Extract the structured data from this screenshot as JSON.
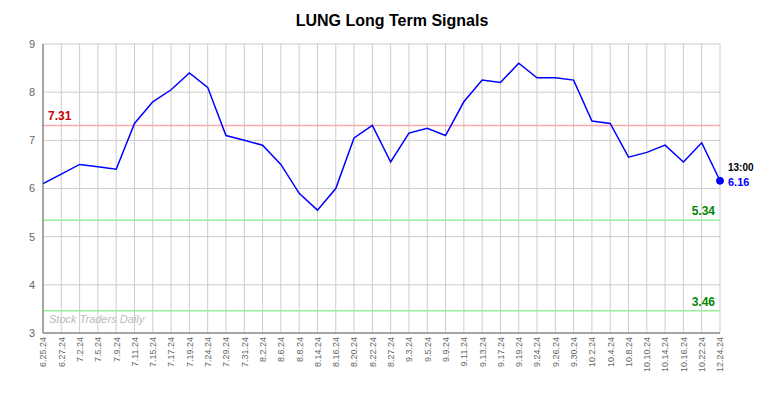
{
  "chart_data": {
    "type": "line",
    "title": "LUNG Long Term Signals",
    "categories": [
      "6.25.24",
      "6.27.24",
      "7.2.24",
      "7.5.24",
      "7.9.24",
      "7.11.24",
      "7.15.24",
      "7.17.24",
      "7.19.24",
      "7.24.24",
      "7.29.24",
      "7.31.24",
      "8.2.24",
      "8.6.24",
      "8.8.24",
      "8.14.24",
      "8.16.24",
      "8.20.24",
      "8.22.24",
      "8.27.24",
      "9.3.24",
      "9.5.24",
      "9.9.24",
      "9.11.24",
      "9.13.24",
      "9.17.24",
      "9.19.24",
      "9.24.24",
      "9.26.24",
      "9.30.24",
      "10.2.24",
      "10.4.24",
      "10.8.24",
      "10.10.24",
      "10.14.24",
      "10.16.24",
      "10.22.24",
      "12.24.24"
    ],
    "values": [
      6.1,
      6.3,
      6.5,
      6.45,
      6.4,
      7.35,
      7.8,
      8.05,
      8.4,
      8.1,
      7.1,
      7.0,
      6.9,
      6.5,
      5.9,
      5.55,
      6.0,
      7.05,
      7.31,
      6.55,
      7.15,
      7.25,
      7.1,
      7.8,
      8.25,
      8.2,
      8.6,
      8.3,
      8.3,
      8.25,
      7.4,
      7.35,
      6.65,
      6.75,
      6.9,
      6.55,
      6.95,
      6.16
    ],
    "color": "#0000ff",
    "ylim": [
      3,
      9
    ],
    "yticks": [
      3,
      4,
      5,
      6,
      7,
      8,
      9
    ],
    "grid": true,
    "hlines": [
      {
        "value": 7.31,
        "color": "#ffaaaa",
        "label": "7.31",
        "label_color": "#cc0000"
      },
      {
        "value": 5.34,
        "color": "#99ee99",
        "label": "5.34",
        "label_color": "#008800"
      },
      {
        "value": 3.46,
        "color": "#99ee99",
        "label": "3.46",
        "label_color": "#008800"
      }
    ],
    "annotations": [
      {
        "text": "13:00",
        "color": "#000000"
      },
      {
        "text": "6.16",
        "color": "#0000ff"
      }
    ],
    "watermark": {
      "text": "Stock Traders Daily",
      "color": "#bbbbbb"
    }
  }
}
